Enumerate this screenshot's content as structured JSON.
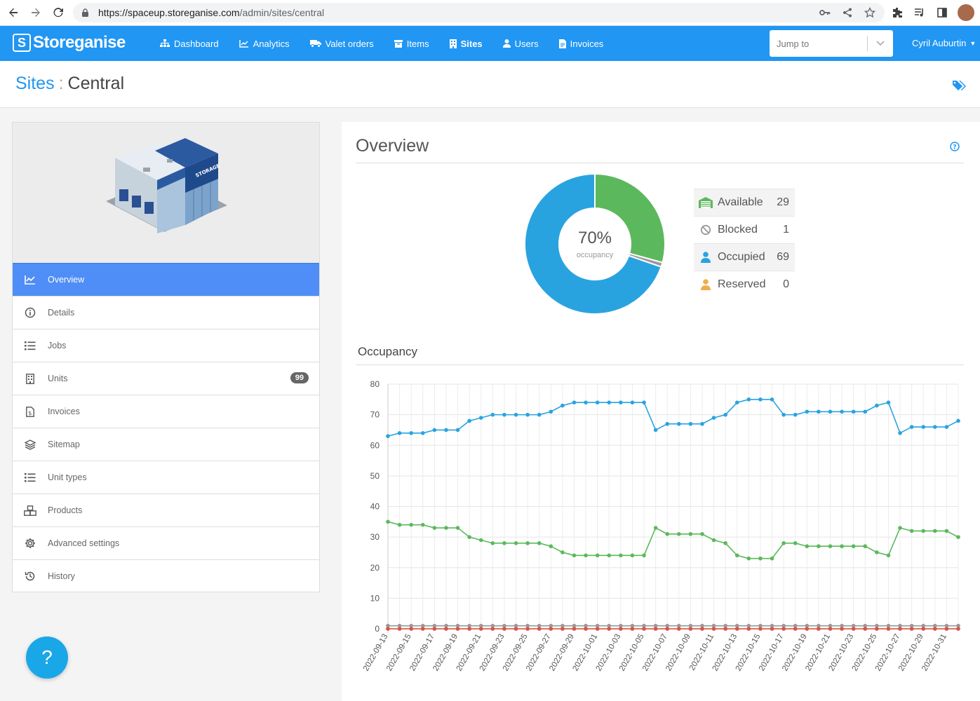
{
  "browser": {
    "url_host": "https://spaceup.storeganise.com",
    "url_path": "/admin/sites/central"
  },
  "app": {
    "brand": "Storeganise",
    "nav": [
      {
        "label": "Dashboard",
        "icon": "sitemap-icon"
      },
      {
        "label": "Analytics",
        "icon": "chart-icon"
      },
      {
        "label": "Valet orders",
        "icon": "truck-icon"
      },
      {
        "label": "Items",
        "icon": "box-icon"
      },
      {
        "label": "Sites",
        "icon": "building-icon",
        "active": true
      },
      {
        "label": "Users",
        "icon": "user-icon"
      },
      {
        "label": "Invoices",
        "icon": "invoice-icon"
      }
    ],
    "jump_placeholder": "Jump to",
    "user_name": "Cyril Auburtin",
    "accent": "#2196f3"
  },
  "page": {
    "crumb_parent": "Sites",
    "crumb_sep": ":",
    "crumb_current": "Central"
  },
  "sidebar": {
    "items": [
      {
        "label": "Overview",
        "icon": "line-chart-icon",
        "active": true
      },
      {
        "label": "Details",
        "icon": "info-icon"
      },
      {
        "label": "Jobs",
        "icon": "list-icon"
      },
      {
        "label": "Units",
        "icon": "building-icon",
        "badge": "99"
      },
      {
        "label": "Invoices",
        "icon": "invoice-icon"
      },
      {
        "label": "Sitemap",
        "icon": "layers-icon"
      },
      {
        "label": "Unit types",
        "icon": "list-icon"
      },
      {
        "label": "Products",
        "icon": "boxes-icon"
      },
      {
        "label": "Advanced settings",
        "icon": "gear-icon"
      },
      {
        "label": "History",
        "icon": "history-icon"
      }
    ]
  },
  "help_fab": "?",
  "overview": {
    "title": "Overview",
    "occupancy_pct": "70%",
    "occupancy_label": "occupancy",
    "legend": [
      {
        "label": "Available",
        "value": "29",
        "color": "#5cb85c",
        "icon": "garage-icon"
      },
      {
        "label": "Blocked",
        "value": "1",
        "color": "#999999",
        "icon": "ban-icon"
      },
      {
        "label": "Occupied",
        "value": "69",
        "color": "#29a3e0",
        "icon": "user-icon"
      },
      {
        "label": "Reserved",
        "value": "0",
        "color": "#f0ad4e",
        "icon": "user-icon"
      }
    ]
  },
  "occupancy": {
    "title": "Occupancy"
  },
  "chart_data": [
    {
      "type": "pie",
      "donut": true,
      "categories": [
        "Available",
        "Blocked",
        "Occupied",
        "Reserved"
      ],
      "values": [
        29,
        1,
        69,
        0
      ],
      "colors": [
        "#5cb85c",
        "#999999",
        "#29a3e0",
        "#f0ad4e"
      ]
    },
    {
      "type": "line",
      "x": [
        "2022-09-13",
        "2022-09-14",
        "2022-09-15",
        "2022-09-16",
        "2022-09-17",
        "2022-09-18",
        "2022-09-19",
        "2022-09-20",
        "2022-09-21",
        "2022-09-22",
        "2022-09-23",
        "2022-09-24",
        "2022-09-25",
        "2022-09-26",
        "2022-09-27",
        "2022-09-28",
        "2022-09-29",
        "2022-09-30",
        "2022-10-01",
        "2022-10-02",
        "2022-10-03",
        "2022-10-04",
        "2022-10-05",
        "2022-10-06",
        "2022-10-07",
        "2022-10-08",
        "2022-10-09",
        "2022-10-10",
        "2022-10-11",
        "2022-10-12",
        "2022-10-13",
        "2022-10-14",
        "2022-10-15",
        "2022-10-16",
        "2022-10-17",
        "2022-10-18",
        "2022-10-19",
        "2022-10-20",
        "2022-10-21",
        "2022-10-22",
        "2022-10-23",
        "2022-10-24",
        "2022-10-25",
        "2022-10-26",
        "2022-10-27",
        "2022-10-28",
        "2022-10-29",
        "2022-10-30",
        "2022-10-31",
        "2022-11-01"
      ],
      "tick_labels": [
        "2022-09-13",
        "2022-09-15",
        "2022-09-17",
        "2022-09-19",
        "2022-09-21",
        "2022-09-23",
        "2022-09-25",
        "2022-09-27",
        "2022-09-29",
        "2022-10-01",
        "2022-10-03",
        "2022-10-05",
        "2022-10-07",
        "2022-10-09",
        "2022-10-11",
        "2022-10-13",
        "2022-10-15",
        "2022-10-17",
        "2022-10-19",
        "2022-10-21",
        "2022-10-23",
        "2022-10-25",
        "2022-10-27",
        "2022-10-29",
        "2022-10-31"
      ],
      "ylim": [
        0,
        80
      ],
      "yticks": [
        0,
        10,
        20,
        30,
        40,
        50,
        60,
        70,
        80
      ],
      "grid": true,
      "series": [
        {
          "color": "#29a3e0",
          "values": [
            63,
            64,
            64,
            64,
            65,
            65,
            65,
            68,
            69,
            70,
            70,
            70,
            70,
            70,
            71,
            73,
            74,
            74,
            74,
            74,
            74,
            74,
            74,
            65,
            67,
            67,
            67,
            67,
            69,
            70,
            74,
            75,
            75,
            75,
            70,
            70,
            71,
            71,
            71,
            71,
            71,
            71,
            73,
            74,
            64,
            66,
            66,
            66,
            66,
            68
          ]
        },
        {
          "color": "#5cb85c",
          "values": [
            35,
            34,
            34,
            34,
            33,
            33,
            33,
            30,
            29,
            28,
            28,
            28,
            28,
            28,
            27,
            25,
            24,
            24,
            24,
            24,
            24,
            24,
            24,
            33,
            31,
            31,
            31,
            31,
            29,
            28,
            24,
            23,
            23,
            23,
            28,
            28,
            27,
            27,
            27,
            27,
            27,
            27,
            25,
            24,
            33,
            32,
            32,
            32,
            32,
            30
          ]
        },
        {
          "color": "#999999",
          "values": [
            1,
            1,
            1,
            1,
            1,
            1,
            1,
            1,
            1,
            1,
            1,
            1,
            1,
            1,
            1,
            1,
            1,
            1,
            1,
            1,
            1,
            1,
            1,
            1,
            1,
            1,
            1,
            1,
            1,
            1,
            1,
            1,
            1,
            1,
            1,
            1,
            1,
            1,
            1,
            1,
            1,
            1,
            1,
            1,
            1,
            1,
            1,
            1,
            1,
            1
          ]
        },
        {
          "color": "#f0ad4e",
          "values": [
            0,
            0,
            0,
            0,
            0,
            0,
            0,
            0,
            0,
            0,
            0,
            0,
            0,
            0,
            0,
            0,
            0,
            0,
            0,
            0,
            0,
            0,
            0,
            0,
            0,
            0,
            0,
            0,
            0,
            0,
            0,
            0,
            0,
            0,
            0,
            0,
            0,
            0,
            0,
            0,
            0,
            0,
            0,
            0,
            0,
            0,
            0,
            0,
            0,
            0
          ]
        },
        {
          "color": "#d9534f",
          "values": [
            0,
            0,
            0,
            0,
            0,
            0,
            0,
            0,
            0,
            0,
            0,
            0,
            0,
            0,
            0,
            0,
            0,
            0,
            0,
            0,
            0,
            0,
            0,
            0,
            0,
            0,
            0,
            0,
            0,
            0,
            0,
            0,
            0,
            0,
            0,
            0,
            0,
            0,
            0,
            0,
            0,
            0,
            0,
            0,
            0,
            0,
            0,
            0,
            0,
            0
          ]
        }
      ]
    }
  ]
}
